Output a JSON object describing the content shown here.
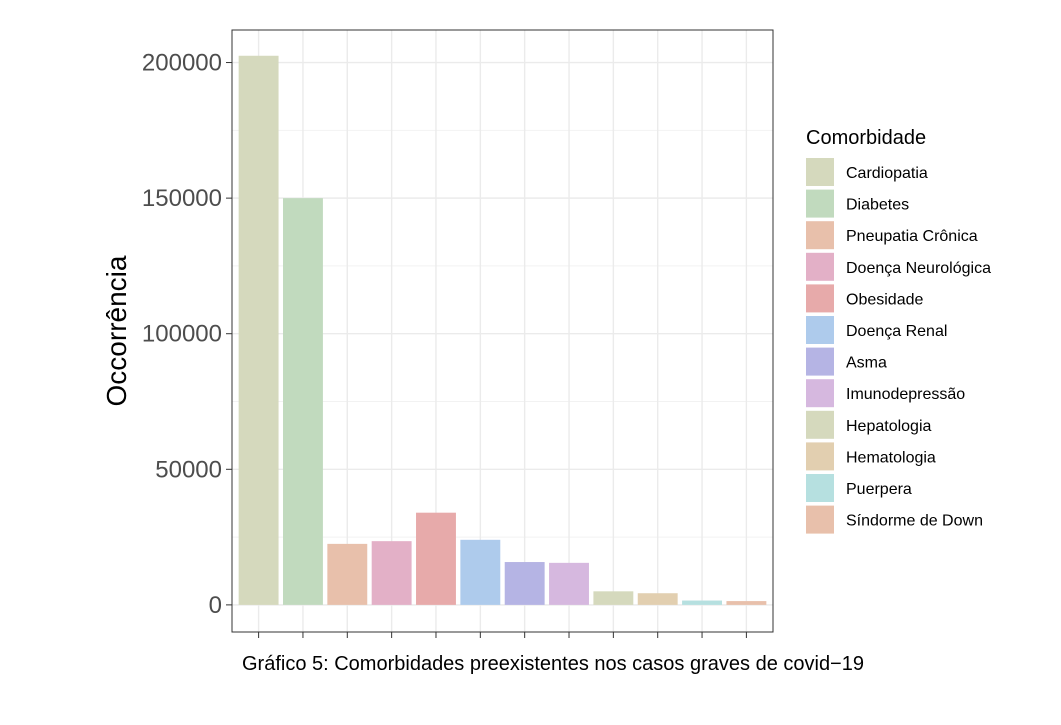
{
  "chart_data": {
    "type": "bar",
    "title": "",
    "xlabel": "",
    "ylabel": "Occorrência",
    "caption": "Gráfico 5: Comorbidades preexistentes nos casos graves de covid−19",
    "ylim": [
      -10000,
      212000
    ],
    "yticks": [
      0,
      50000,
      100000,
      150000,
      200000
    ],
    "ytick_labels": [
      "0",
      "50000",
      "100000",
      "150000",
      "200000"
    ],
    "categories": [
      "Cardiopatia",
      "Diabetes",
      "Pneupatia Crônica",
      "Doença Neurológica",
      "Obesidade",
      "Doença Renal",
      "Asma",
      "Imunodepressão",
      "Hepatologia",
      "Hematologia",
      "Puerpera",
      "Síndorme de Down"
    ],
    "values": [
      202500,
      150000,
      22500,
      23500,
      34000,
      24000,
      15800,
      15500,
      5000,
      4300,
      1600,
      1400
    ],
    "colors": [
      "#d5d9bd",
      "#c1dabe",
      "#e8c0ab",
      "#e3b0c7",
      "#e7aaaa",
      "#aecbec",
      "#b5b4e4",
      "#d6b8df",
      "#d5d9bd",
      "#e2cfb0",
      "#b6e0e0",
      "#e8c0ab"
    ],
    "grid": true,
    "legend": {
      "title": "Comorbidade",
      "position": "right"
    }
  }
}
